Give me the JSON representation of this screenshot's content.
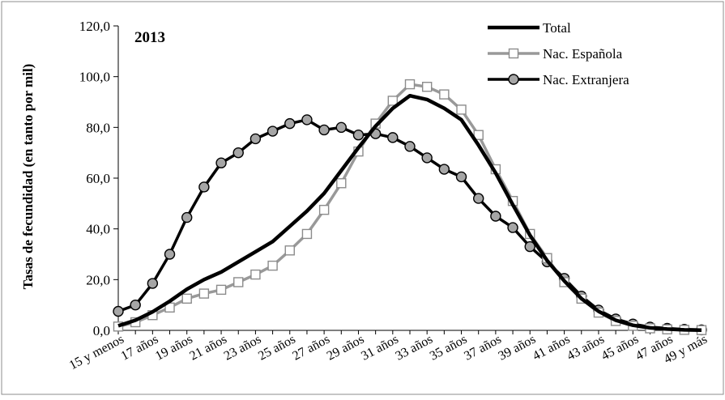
{
  "chart_data": {
    "type": "line",
    "annotation": "2013",
    "ylabel": "Tasas de fecundidad (en tanto por mil)",
    "xlabel": "",
    "ylim": [
      0,
      120
    ],
    "yticks": [
      "0,0",
      "20,0",
      "40,0",
      "60,0",
      "80,0",
      "100,0",
      "120,0"
    ],
    "ytick_values": [
      0,
      20,
      40,
      60,
      80,
      100,
      120
    ],
    "x_labels_shown": [
      "15 y menos",
      "17 años",
      "19 años",
      "21 años",
      "23 años",
      "25 años",
      "27 años",
      "29 años",
      "31 años",
      "33 años",
      "35 años",
      "37 años",
      "39 años",
      "41 años",
      "43 años",
      "45 años",
      "47 años",
      "49 y más"
    ],
    "x": [
      "15 y menos",
      "16 años",
      "17 años",
      "18 años",
      "19 años",
      "20 años",
      "21 años",
      "22 años",
      "23 años",
      "24 años",
      "25 años",
      "26 años",
      "27 años",
      "28 años",
      "29 años",
      "30 años",
      "31 años",
      "32 años",
      "33 años",
      "34 años",
      "35 años",
      "36 años",
      "37 años",
      "38 años",
      "39 años",
      "40 años",
      "41 años",
      "42 años",
      "43 años",
      "44 años",
      "45 años",
      "46 años",
      "47 años",
      "48 años",
      "49 y más"
    ],
    "legend_position": "top-right",
    "grid": false,
    "series": [
      {
        "name": "Total",
        "color": "#000000",
        "marker": "none",
        "values": [
          1.8,
          4.0,
          7.3,
          11.5,
          16.2,
          20.0,
          23.0,
          27.0,
          31.0,
          35.0,
          41.0,
          47.0,
          54.0,
          63.0,
          72.0,
          80.5,
          87.5,
          92.5,
          91.0,
          87.5,
          83.0,
          73.0,
          62.0,
          49.5,
          37.5,
          27.5,
          19.5,
          12.5,
          7.5,
          4.0,
          2.0,
          1.0,
          0.5,
          0.2,
          0.1
        ]
      },
      {
        "name": "Nac. Española",
        "color": "#999999",
        "marker": "square",
        "values": [
          1.5,
          3.2,
          6.0,
          9.0,
          12.5,
          14.5,
          16.0,
          19.0,
          22.0,
          25.5,
          31.5,
          38.0,
          47.5,
          58.0,
          70.5,
          81.5,
          90.5,
          97.0,
          96.0,
          93.0,
          87.0,
          77.0,
          63.5,
          51.0,
          38.0,
          28.5,
          19.0,
          12.5,
          7.0,
          3.7,
          1.8,
          0.8,
          0.4,
          0.2,
          0.1
        ]
      },
      {
        "name": "Nac. Extranjera",
        "color": "#000000",
        "marker": "circle",
        "values": [
          7.5,
          10.0,
          18.5,
          30.0,
          44.5,
          56.5,
          66.0,
          70.0,
          75.5,
          78.5,
          81.5,
          83.0,
          79.0,
          80.0,
          77.0,
          77.5,
          76.0,
          72.5,
          68.0,
          63.5,
          60.5,
          52.0,
          45.0,
          40.5,
          33.0,
          27.0,
          20.5,
          13.5,
          8.0,
          4.5,
          2.5,
          1.3,
          0.8,
          0.4,
          0.2
        ]
      }
    ]
  }
}
